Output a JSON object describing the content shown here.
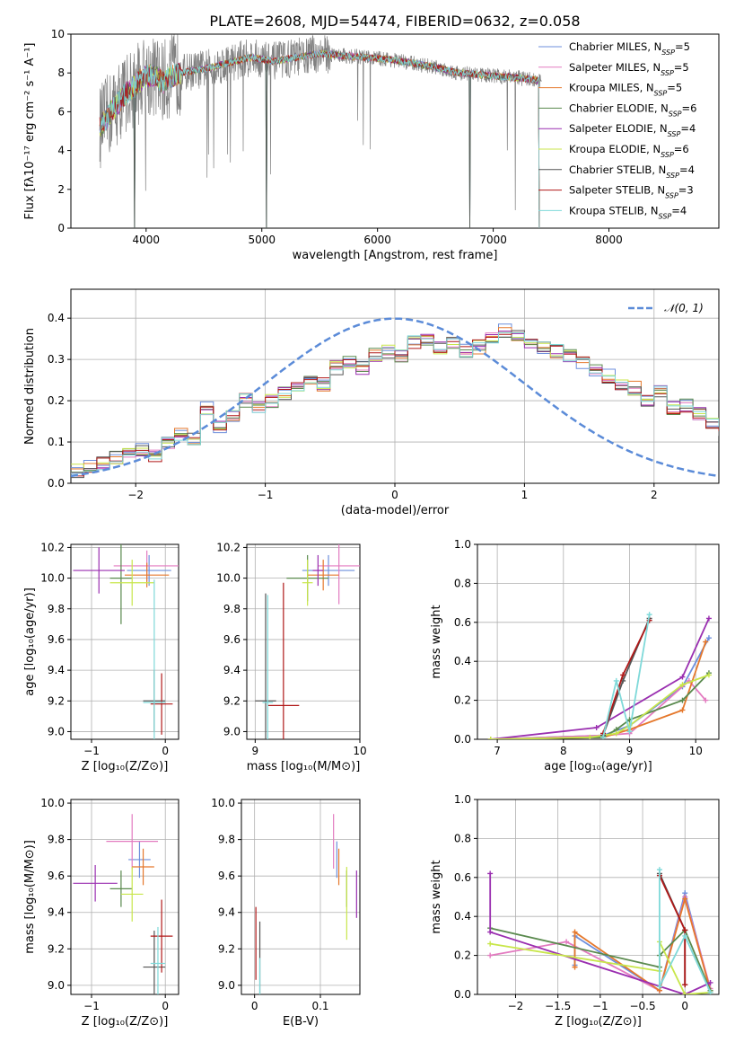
{
  "figure_title": "PLATE=2608, MJD=54474, FIBERID=0632, z=0.058",
  "models": [
    {
      "name": "Chabrier MILES",
      "nssp": "5",
      "color": "#6d8fdc"
    },
    {
      "name": "Salpeter MILES",
      "nssp": "5",
      "color": "#e37bc0"
    },
    {
      "name": "Kroupa MILES",
      "nssp": "5",
      "color": "#e5782c"
    },
    {
      "name": "Chabrier ELODIE",
      "nssp": "6",
      "color": "#5a8a4e"
    },
    {
      "name": "Salpeter ELODIE",
      "nssp": "4",
      "color": "#9a2fb0"
    },
    {
      "name": "Kroupa ELODIE",
      "nssp": "6",
      "color": "#c8e64a"
    },
    {
      "name": "Chabrier STELIB",
      "nssp": "4",
      "color": "#555555"
    },
    {
      "name": "Salpeter STELIB",
      "nssp": "3",
      "color": "#b01818"
    },
    {
      "name": "Kroupa STELIB",
      "nssp": "4",
      "color": "#7fd9d9"
    }
  ],
  "legend_nssp_prefix": "N",
  "legend_nssp_sub": "SSP",
  "chart_data": [
    {
      "id": "spectrum",
      "type": "line",
      "xlabel": "wavelength [Angstrom, rest frame]",
      "ylabel": "Flux [fλ10⁻¹⁷ erg cm⁻² s⁻¹ A⁻¹]",
      "xlim": [
        3350,
        8950
      ],
      "ylim": [
        0,
        10
      ],
      "xticks": [
        4000,
        5000,
        6000,
        7000,
        8000
      ],
      "yticks": [
        0,
        2,
        4,
        6,
        8,
        10
      ],
      "data_color": "#808080",
      "continuum": {
        "x": [
          3600,
          3650,
          3700,
          3750,
          3800,
          3850,
          3900,
          3950,
          4000,
          4050,
          4100,
          4150,
          4200,
          4300,
          4400,
          4500,
          4700,
          4900,
          5100,
          5300,
          5500,
          5700,
          5900,
          6100,
          6300,
          6500,
          6700,
          6900,
          7100,
          7300,
          7400
        ],
        "y": [
          5.2,
          5.6,
          6.0,
          6.4,
          6.8,
          7.1,
          7.3,
          7.6,
          7.8,
          7.9,
          7.7,
          7.5,
          7.8,
          8.0,
          8.1,
          8.2,
          8.5,
          8.8,
          8.6,
          8.8,
          9.0,
          8.9,
          8.8,
          8.7,
          8.5,
          8.3,
          8.0,
          7.9,
          7.8,
          7.7,
          7.6
        ]
      },
      "model_dips": [
        {
          "x": 3900,
          "y": 0.0
        },
        {
          "x": 5040,
          "y": 0.0
        },
        {
          "x": 6800,
          "y": 0.0
        },
        {
          "x": 7400,
          "y": 0.0
        }
      ]
    },
    {
      "id": "residuals",
      "type": "step",
      "xlabel": "(data-model)/error",
      "ylabel": "Normed distribution",
      "xlim": [
        -2.5,
        2.5
      ],
      "ylim": [
        0,
        0.47
      ],
      "xticks": [
        -2,
        -1,
        0,
        1,
        2
      ],
      "yticks": [
        0.0,
        0.1,
        0.2,
        0.3,
        0.4
      ],
      "reference_label": "𝒩(0, 1)",
      "reference_color": "#5b8bd8",
      "bin_width": 0.1,
      "bin_start": -2.5,
      "mean_hist": [
        0.03,
        0.04,
        0.05,
        0.06,
        0.07,
        0.08,
        0.07,
        0.1,
        0.12,
        0.11,
        0.18,
        0.14,
        0.16,
        0.2,
        0.18,
        0.2,
        0.22,
        0.24,
        0.25,
        0.24,
        0.28,
        0.29,
        0.28,
        0.31,
        0.32,
        0.31,
        0.34,
        0.35,
        0.33,
        0.34,
        0.32,
        0.33,
        0.35,
        0.37,
        0.36,
        0.34,
        0.33,
        0.32,
        0.31,
        0.29,
        0.27,
        0.26,
        0.24,
        0.23,
        0.2,
        0.22,
        0.18,
        0.19,
        0.17,
        0.15,
        0.13,
        0.12,
        0.11,
        0.1,
        0.09,
        0.08,
        0.07,
        0.06,
        0.06,
        0.05,
        0.04,
        0.04,
        0.03,
        0.03,
        0.03,
        0.02,
        0.02,
        0.02,
        0.02,
        0.02,
        0.02,
        0.02,
        0.02,
        0.02,
        0.02
      ]
    },
    {
      "id": "age_vs_Z",
      "type": "errorbar",
      "xlabel": "Z [log₁₀(Z/Z⊙)]",
      "ylabel": "age  [log₁₀(age/yr)]",
      "xlim": [
        -1.28,
        0.18
      ],
      "ylim": [
        8.95,
        10.22
      ],
      "xticks": [
        -1,
        0
      ],
      "yticks": [
        9.0,
        9.2,
        9.4,
        9.6,
        9.8,
        10.0,
        10.2
      ],
      "points": [
        {
          "m": 0,
          "x": -0.22,
          "y": 10.05,
          "xe": 0.3,
          "ye": 0.1
        },
        {
          "m": 1,
          "x": -0.25,
          "y": 10.08,
          "xe": 0.45,
          "ye": 0.1
        },
        {
          "m": 2,
          "x": -0.25,
          "y": 10.02,
          "xe": 0.3,
          "ye": 0.08
        },
        {
          "m": 3,
          "x": -0.6,
          "y": 10.0,
          "xe": 0.15,
          "ye": 0.3
        },
        {
          "m": 4,
          "x": -0.9,
          "y": 10.05,
          "xe": 0.35,
          "ye": 0.15
        },
        {
          "m": 5,
          "x": -0.45,
          "y": 9.97,
          "xe": 0.3,
          "ye": 0.15
        },
        {
          "m": 6,
          "x": -0.15,
          "y": 9.2,
          "xe": 0.15,
          "ye": 0.2
        },
        {
          "m": 7,
          "x": -0.05,
          "y": 9.18,
          "xe": 0.15,
          "ye": 0.2
        },
        {
          "m": 8,
          "x": -0.15,
          "y": 9.19,
          "xe": 0.15,
          "ye": 0.8
        }
      ]
    },
    {
      "id": "age_vs_mass",
      "type": "errorbar",
      "xlabel": "mass [log₁₀(M/M⊙)]",
      "ylabel": "",
      "xlim": [
        8.92,
        10.0
      ],
      "ylim": [
        8.95,
        10.22
      ],
      "xticks": [
        9,
        10
      ],
      "yticks": [
        9.0,
        9.2,
        9.4,
        9.6,
        9.8,
        10.0,
        10.2
      ],
      "points": [
        {
          "m": 0,
          "x": 9.7,
          "y": 10.05,
          "xe": 0.25,
          "ye": 0.1
        },
        {
          "m": 1,
          "x": 9.8,
          "y": 10.08,
          "xe": 0.2,
          "ye": 0.25
        },
        {
          "m": 2,
          "x": 9.65,
          "y": 10.02,
          "xe": 0.15,
          "ye": 0.1
        },
        {
          "m": 3,
          "x": 9.5,
          "y": 10.0,
          "xe": 0.2,
          "ye": 0.15
        },
        {
          "m": 4,
          "x": 9.6,
          "y": 10.05,
          "xe": 0.05,
          "ye": 0.1
        },
        {
          "m": 5,
          "x": 9.5,
          "y": 9.97,
          "xe": 0.05,
          "ye": 0.15
        },
        {
          "m": 6,
          "x": 9.1,
          "y": 9.2,
          "xe": 0.1,
          "ye": 0.7
        },
        {
          "m": 7,
          "x": 9.27,
          "y": 9.17,
          "xe": 0.15,
          "ye": 0.8
        },
        {
          "m": 8,
          "x": 9.12,
          "y": 9.19,
          "xe": 0.05,
          "ye": 0.7
        }
      ]
    },
    {
      "id": "massweight_vs_age",
      "type": "line",
      "xlabel": "age  [log₁₀(age/yr)]",
      "ylabel": "mass weight",
      "xlim": [
        6.7,
        10.35
      ],
      "ylim": [
        0,
        1.0
      ],
      "xticks": [
        7,
        8,
        9,
        10
      ],
      "yticks": [
        0.0,
        0.2,
        0.4,
        0.6,
        0.8,
        1.0
      ],
      "series": [
        {
          "m": 0,
          "x": [
            6.9,
            8.6,
            9.0,
            9.8,
            10.2
          ],
          "y": [
            0.0,
            0.02,
            0.07,
            0.27,
            0.52
          ]
        },
        {
          "m": 1,
          "x": [
            6.9,
            8.6,
            9.0,
            9.9,
            10.15
          ],
          "y": [
            0.0,
            0.02,
            0.03,
            0.3,
            0.2
          ]
        },
        {
          "m": 2,
          "x": [
            6.9,
            8.6,
            9.0,
            9.8,
            10.15
          ],
          "y": [
            0.0,
            0.01,
            0.05,
            0.15,
            0.5
          ]
        },
        {
          "m": 3,
          "x": [
            6.9,
            8.6,
            8.8,
            9.0,
            9.8,
            10.2
          ],
          "y": [
            0.0,
            0.01,
            0.05,
            0.1,
            0.2,
            0.34
          ]
        },
        {
          "m": 4,
          "x": [
            6.9,
            8.5,
            9.8,
            10.2
          ],
          "y": [
            0.0,
            0.06,
            0.32,
            0.62
          ]
        },
        {
          "m": 5,
          "x": [
            6.9,
            8.4,
            8.8,
            9.0,
            9.8,
            10.2
          ],
          "y": [
            0.0,
            0.01,
            0.03,
            0.07,
            0.28,
            0.33
          ]
        },
        {
          "m": 6,
          "x": [
            8.6,
            8.9,
            9.3
          ],
          "y": [
            0.02,
            0.3,
            0.62
          ]
        },
        {
          "m": 7,
          "x": [
            8.6,
            8.9,
            9.3
          ],
          "y": [
            0.03,
            0.33,
            0.61
          ]
        },
        {
          "m": 8,
          "x": [
            8.6,
            8.8,
            9.0,
            9.3
          ],
          "y": [
            0.01,
            0.3,
            0.04,
            0.64
          ]
        }
      ]
    },
    {
      "id": "mass_vs_Z",
      "type": "errorbar",
      "xlabel": "Z [log₁₀(Z/Z⊙)]",
      "ylabel": "mass [log₁₀(M/M⊙)]",
      "xlim": [
        -1.28,
        0.18
      ],
      "ylim": [
        8.95,
        10.02
      ],
      "xticks": [
        -1,
        0
      ],
      "yticks": [
        9.0,
        9.2,
        9.4,
        9.6,
        9.8,
        10.0
      ],
      "points": [
        {
          "m": 0,
          "x": -0.35,
          "y": 9.69,
          "xe": 0.15,
          "ye": 0.1
        },
        {
          "m": 1,
          "x": -0.45,
          "y": 9.79,
          "xe": 0.35,
          "ye": 0.15
        },
        {
          "m": 2,
          "x": -0.3,
          "y": 9.65,
          "xe": 0.15,
          "ye": 0.1
        },
        {
          "m": 3,
          "x": -0.6,
          "y": 9.53,
          "xe": 0.15,
          "ye": 0.1
        },
        {
          "m": 4,
          "x": -0.95,
          "y": 9.56,
          "xe": 0.3,
          "ye": 0.1
        },
        {
          "m": 5,
          "x": -0.45,
          "y": 9.5,
          "xe": 0.15,
          "ye": 0.15
        },
        {
          "m": 6,
          "x": -0.15,
          "y": 9.1,
          "xe": 0.15,
          "ye": 0.2
        },
        {
          "m": 7,
          "x": -0.05,
          "y": 9.27,
          "xe": 0.15,
          "ye": 0.2
        },
        {
          "m": 8,
          "x": -0.1,
          "y": 9.12,
          "xe": 0.1,
          "ye": 0.2
        }
      ]
    },
    {
      "id": "mass_vs_ebv",
      "type": "errorbar",
      "xlabel": "E(B-V)",
      "ylabel": "",
      "xlim": [
        -0.02,
        0.16
      ],
      "ylim": [
        8.95,
        10.02
      ],
      "xticks": [
        0.0,
        0.1
      ],
      "yticks": [
        9.0,
        9.2,
        9.4,
        9.6,
        9.8,
        10.0
      ],
      "points": [
        {
          "m": 0,
          "x": 0.125,
          "y": 9.69,
          "xe": 0.0,
          "ye": 0.1
        },
        {
          "m": 1,
          "x": 0.12,
          "y": 9.79,
          "xe": 0.0,
          "ye": 0.15
        },
        {
          "m": 2,
          "x": 0.128,
          "y": 9.65,
          "xe": 0.0,
          "ye": 0.1
        },
        {
          "m": 3,
          "x": 0.14,
          "y": 9.53,
          "xe": 0.0,
          "ye": 0.1
        },
        {
          "m": 4,
          "x": 0.155,
          "y": 9.5,
          "xe": 0.0,
          "ye": 0.13
        },
        {
          "m": 5,
          "x": 0.14,
          "y": 9.45,
          "xe": 0.0,
          "ye": 0.2
        },
        {
          "m": 6,
          "x": 0.008,
          "y": 9.15,
          "xe": 0.0,
          "ye": 0.2
        },
        {
          "m": 7,
          "x": 0.002,
          "y": 9.23,
          "xe": 0.0,
          "ye": 0.2
        },
        {
          "m": 8,
          "x": 0.008,
          "y": 9.05,
          "xe": 0.0,
          "ye": 0.1
        }
      ]
    },
    {
      "id": "massweight_vs_Z",
      "type": "line",
      "xlabel": "Z [log₁₀(Z/Z⊙)]",
      "ylabel": "mass weight",
      "xlim": [
        -2.45,
        0.4
      ],
      "ylim": [
        0,
        1.0
      ],
      "xticks": [
        -2.0,
        -1.5,
        -1.0,
        -0.5,
        0.0
      ],
      "yticks": [
        0.0,
        0.2,
        0.4,
        0.6,
        0.8,
        1.0
      ],
      "series": [
        {
          "m": 0,
          "x": [
            -1.3,
            -1.3,
            -0.3,
            0.0,
            0.3
          ],
          "y": [
            0.15,
            0.3,
            0.02,
            0.52,
            0.02
          ]
        },
        {
          "m": 1,
          "x": [
            -2.3,
            -1.4,
            -0.3,
            0.0,
            0.3
          ],
          "y": [
            0.2,
            0.27,
            0.02,
            0.5,
            0.03
          ]
        },
        {
          "m": 2,
          "x": [
            -1.3,
            -1.3,
            -0.3,
            0.0,
            0.3
          ],
          "y": [
            0.14,
            0.32,
            0.02,
            0.49,
            0.02
          ]
        },
        {
          "m": 3,
          "x": [
            -2.3,
            -0.3,
            -0.3,
            0.0,
            0.3
          ],
          "y": [
            0.34,
            0.14,
            0.2,
            0.33,
            0.02
          ]
        },
        {
          "m": 4,
          "x": [
            -2.3,
            -2.3,
            0.0,
            0.3
          ],
          "y": [
            0.62,
            0.32,
            0.0,
            0.06
          ]
        },
        {
          "m": 5,
          "x": [
            -2.3,
            -0.3,
            -0.3,
            0.0,
            0.3
          ],
          "y": [
            0.26,
            0.12,
            0.27,
            0.0,
            0.01
          ]
        },
        {
          "m": 6,
          "x": [
            -0.3,
            0.0,
            0.0
          ],
          "y": [
            0.62,
            0.33,
            0.05
          ]
        },
        {
          "m": 7,
          "x": [
            -0.3,
            0.0,
            0.0
          ],
          "y": [
            0.61,
            0.33,
            0.05
          ]
        },
        {
          "m": 8,
          "x": [
            -0.3,
            -0.3,
            0.0,
            0.3
          ],
          "y": [
            0.64,
            0.04,
            0.3,
            0.01
          ]
        }
      ]
    }
  ]
}
